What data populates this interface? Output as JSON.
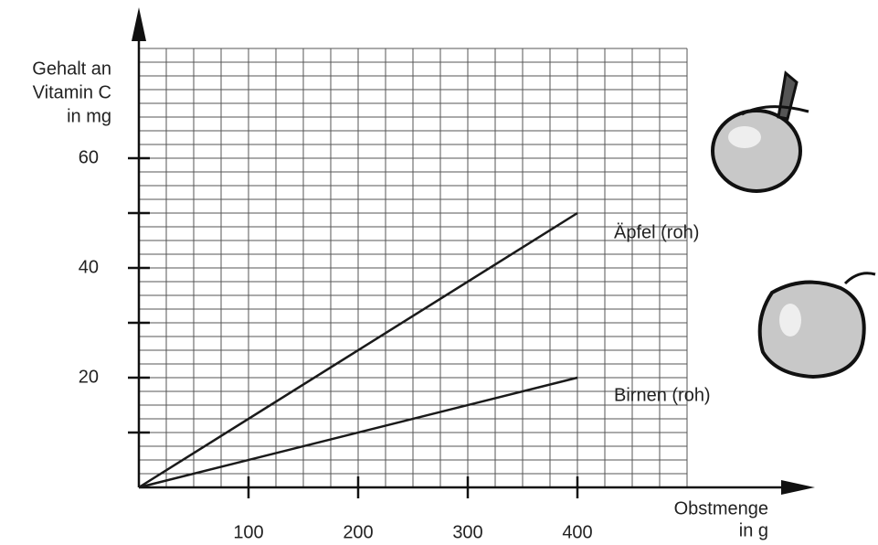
{
  "chart_data": {
    "type": "line",
    "x_label": [
      "Obstmenge",
      "in g"
    ],
    "y_label": [
      "Gehalt an",
      "Vitamin C",
      "in mg"
    ],
    "x": [
      0,
      400
    ],
    "series": [
      {
        "name": "Äpfel (roh)",
        "color": "#1a1a1a",
        "values": [
          0,
          50
        ]
      },
      {
        "name": "Birnen (roh)",
        "color": "#1a1a1a",
        "values": [
          0,
          20
        ]
      }
    ],
    "xlim": [
      0,
      500
    ],
    "ylim": [
      0,
      80
    ],
    "xticks": [
      100,
      200,
      300,
      400
    ],
    "yticks": [
      20,
      40,
      60
    ],
    "minor_yticks": [
      10,
      30,
      50
    ],
    "grid": true,
    "grid_step": {
      "x": 25,
      "y": 2.5
    }
  }
}
